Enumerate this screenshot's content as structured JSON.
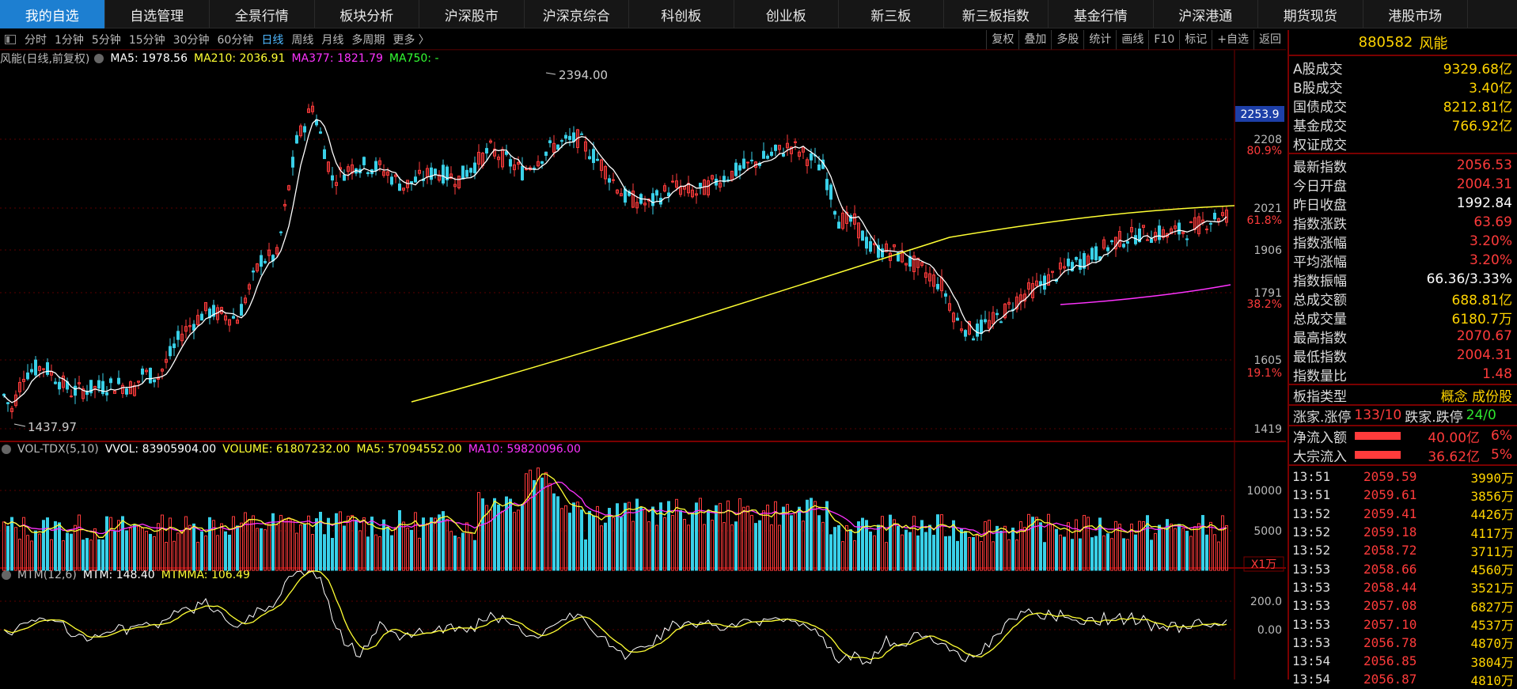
{
  "nav": [
    "我的自选",
    "自选管理",
    "全景行情",
    "板块分析",
    "沪深股市",
    "沪深京综合",
    "科创板",
    "创业板",
    "新三板",
    "新三板指数",
    "基金行情",
    "沪深港通",
    "期货现货",
    "港股市场"
  ],
  "toolbar": {
    "periods": [
      "分时",
      "1分钟",
      "5分钟",
      "15分钟",
      "30分钟",
      "60分钟",
      "日线",
      "周线",
      "月线",
      "多周期",
      "更多 〉"
    ],
    "active_period": "日线",
    "buttons": [
      "复权",
      "叠加",
      "多股",
      "统计",
      "画线",
      "F10",
      "标记",
      "+自选",
      "返回"
    ]
  },
  "main_legend": {
    "name": "风能(日线,前复权)",
    "ma5": "MA5: 1978.56",
    "ma210": "MA210: 2036.91",
    "ma377": "MA377: 1821.79",
    "ma750": "MA750: -"
  },
  "vol_legend": {
    "name": "VOL-TDX(5,10)",
    "vvol": "VVOL: 83905904.00",
    "volume": "VOLUME: 61807232.00",
    "ma5": "MA5: 57094552.00",
    "ma10": "MA10: 59820096.00"
  },
  "mtm_legend": {
    "name": "MTM(12,6)",
    "mtm": "MTM: 148.40",
    "mtmma": "MTMMA: 106.49"
  },
  "chart_data": {
    "type": "candlestick",
    "price_axis_ticks": [
      "2208",
      "2021",
      "1906",
      "1791",
      "1605",
      "1419"
    ],
    "fib_labels": [
      "80.9%",
      "61.8%",
      "38.2%",
      "19.1%"
    ],
    "current_price_label": "2253.9",
    "high_label": "2394.00",
    "low_label": "1437.97",
    "vol_axis_ticks": [
      "10000",
      "5000"
    ],
    "vol_unit": "X1万",
    "mtm_axis_ticks": [
      "200.0",
      "0.00"
    ],
    "colors": {
      "up": "#ff3b3b",
      "down": "#39d0e8",
      "ma5": "#ffffff",
      "ma210": "#ffff33",
      "ma377": "#ff33ff"
    }
  },
  "panel": {
    "code": "880582",
    "name": "风能",
    "turnover": [
      {
        "label": "A股成交",
        "value": "9329.68亿"
      },
      {
        "label": "B股成交",
        "value": "3.40亿"
      },
      {
        "label": "国债成交",
        "value": "8212.81亿"
      },
      {
        "label": "基金成交",
        "value": "766.92亿"
      },
      {
        "label": "权证成交",
        "value": ""
      }
    ],
    "stats": [
      {
        "label": "最新指数",
        "value": "2056.53",
        "color": "red"
      },
      {
        "label": "今日开盘",
        "value": "2004.31",
        "color": "red"
      },
      {
        "label": "昨日收盘",
        "value": "1992.84",
        "color": "white"
      },
      {
        "label": "指数涨跌",
        "value": "63.69",
        "color": "red"
      },
      {
        "label": "指数涨幅",
        "value": "3.20%",
        "color": "red"
      },
      {
        "label": "平均涨幅",
        "value": "3.20%",
        "color": "red"
      },
      {
        "label": "指数振幅",
        "value": "66.36/3.33%",
        "color": "white"
      },
      {
        "label": "总成交额",
        "value": "688.81亿",
        "color": "yellow"
      },
      {
        "label": "总成交量",
        "value": "6180.7万",
        "color": "yellow"
      },
      {
        "label": "最高指数",
        "value": "2070.67",
        "color": "red"
      },
      {
        "label": "最低指数",
        "value": "2004.31",
        "color": "red"
      },
      {
        "label": "指数量比",
        "value": "1.48",
        "color": "red"
      }
    ],
    "type_label": "板指类型",
    "type_value": "概念 成份股",
    "updown_label1": "涨家.涨停",
    "updown_val1": "133/10",
    "updown_label2": "跌家.跌停",
    "updown_val2": "24/0",
    "flows": [
      {
        "label": "净流入额",
        "value": "40.00亿",
        "pct": "6%"
      },
      {
        "label": "大宗流入",
        "value": "36.62亿",
        "pct": "5%"
      }
    ],
    "ticks": [
      {
        "t": "13:51",
        "p": "2059.59",
        "v": "3990万"
      },
      {
        "t": "13:51",
        "p": "2059.61",
        "v": "3856万"
      },
      {
        "t": "13:52",
        "p": "2059.41",
        "v": "4426万"
      },
      {
        "t": "13:52",
        "p": "2059.18",
        "v": "4117万"
      },
      {
        "t": "13:52",
        "p": "2058.72",
        "v": "3711万"
      },
      {
        "t": "13:53",
        "p": "2058.66",
        "v": "4560万"
      },
      {
        "t": "13:53",
        "p": "2058.44",
        "v": "3521万"
      },
      {
        "t": "13:53",
        "p": "2057.08",
        "v": "6827万"
      },
      {
        "t": "13:53",
        "p": "2057.10",
        "v": "4537万"
      },
      {
        "t": "13:53",
        "p": "2056.78",
        "v": "4870万"
      },
      {
        "t": "13:54",
        "p": "2056.85",
        "v": "3804万"
      },
      {
        "t": "13:54",
        "p": "2056.87",
        "v": "4810万"
      }
    ]
  }
}
